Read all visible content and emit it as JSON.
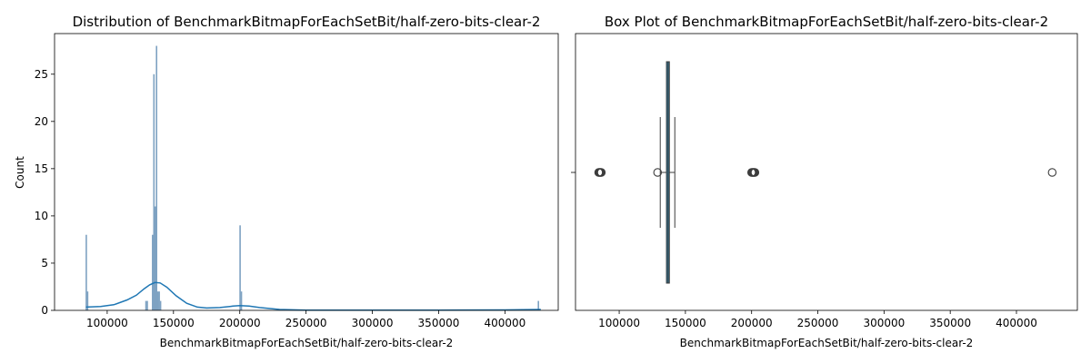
{
  "chart_data": [
    {
      "type": "histogram",
      "title": "Distribution of BenchmarkBitmapForEachSetBit/half-zero-bits-clear-2",
      "xlabel": "BenchmarkBitmapForEachSetBit/half-zero-bits-clear-2",
      "ylabel": "Count",
      "xlim": [
        60300,
        440200
      ],
      "ylim": [
        0,
        29.3
      ],
      "xticks": [
        100000,
        150000,
        200000,
        250000,
        300000,
        350000,
        400000
      ],
      "xtick_labels": [
        "100000",
        "150000",
        "200000",
        "250000",
        "300000",
        "350000",
        "400000"
      ],
      "yticks": [
        0,
        5,
        10,
        15,
        20,
        25
      ],
      "bar_width": 1000,
      "bars": [
        {
          "x": 84200,
          "count": 8
        },
        {
          "x": 85200,
          "count": 2
        },
        {
          "x": 129200,
          "count": 1
        },
        {
          "x": 130200,
          "count": 1
        },
        {
          "x": 134200,
          "count": 8
        },
        {
          "x": 135200,
          "count": 25
        },
        {
          "x": 136200,
          "count": 11
        },
        {
          "x": 137200,
          "count": 28
        },
        {
          "x": 138200,
          "count": 2
        },
        {
          "x": 139200,
          "count": 2
        },
        {
          "x": 140200,
          "count": 1
        },
        {
          "x": 200200,
          "count": 9
        },
        {
          "x": 201200,
          "count": 2
        },
        {
          "x": 425200,
          "count": 1
        }
      ],
      "kde": {
        "x": [
          84000,
          95000,
          105000,
          115000,
          122000,
          128000,
          132000,
          136000,
          140000,
          145000,
          152000,
          160000,
          168000,
          175000,
          185000,
          195000,
          200000,
          207000,
          215000,
          230000,
          250000,
          300000,
          350000,
          400000,
          427000
        ],
        "y": [
          0.35,
          0.4,
          0.6,
          1.1,
          1.6,
          2.3,
          2.7,
          2.95,
          2.9,
          2.45,
          1.55,
          0.75,
          0.35,
          0.25,
          0.3,
          0.45,
          0.5,
          0.45,
          0.3,
          0.1,
          0.03,
          0.02,
          0.03,
          0.05,
          0.1
        ]
      },
      "bar_color": "#7ea2c2",
      "line_color": "#1f77b4"
    },
    {
      "type": "box",
      "title": "Box Plot of BenchmarkBitmapForEachSetBit/half-zero-bits-clear-2",
      "xlabel": "BenchmarkBitmapForEachSetBit/half-zero-bits-clear-2",
      "xlim": [
        67000,
        446000
      ],
      "xticks": [
        100000,
        150000,
        200000,
        250000,
        300000,
        350000,
        400000
      ],
      "xtick_labels": [
        "100000",
        "150000",
        "200000",
        "250000",
        "300000",
        "350000",
        "400000"
      ],
      "q1": 135700,
      "median": 136900,
      "q3": 137900,
      "whisker_low": 131000,
      "whisker_high": 142000,
      "outliers": [
        84500,
        85000,
        85500,
        86000,
        86500,
        129000,
        200000,
        200500,
        201000,
        201500,
        202000,
        202500,
        427000
      ],
      "box_color": "#2c7ea6"
    }
  ]
}
